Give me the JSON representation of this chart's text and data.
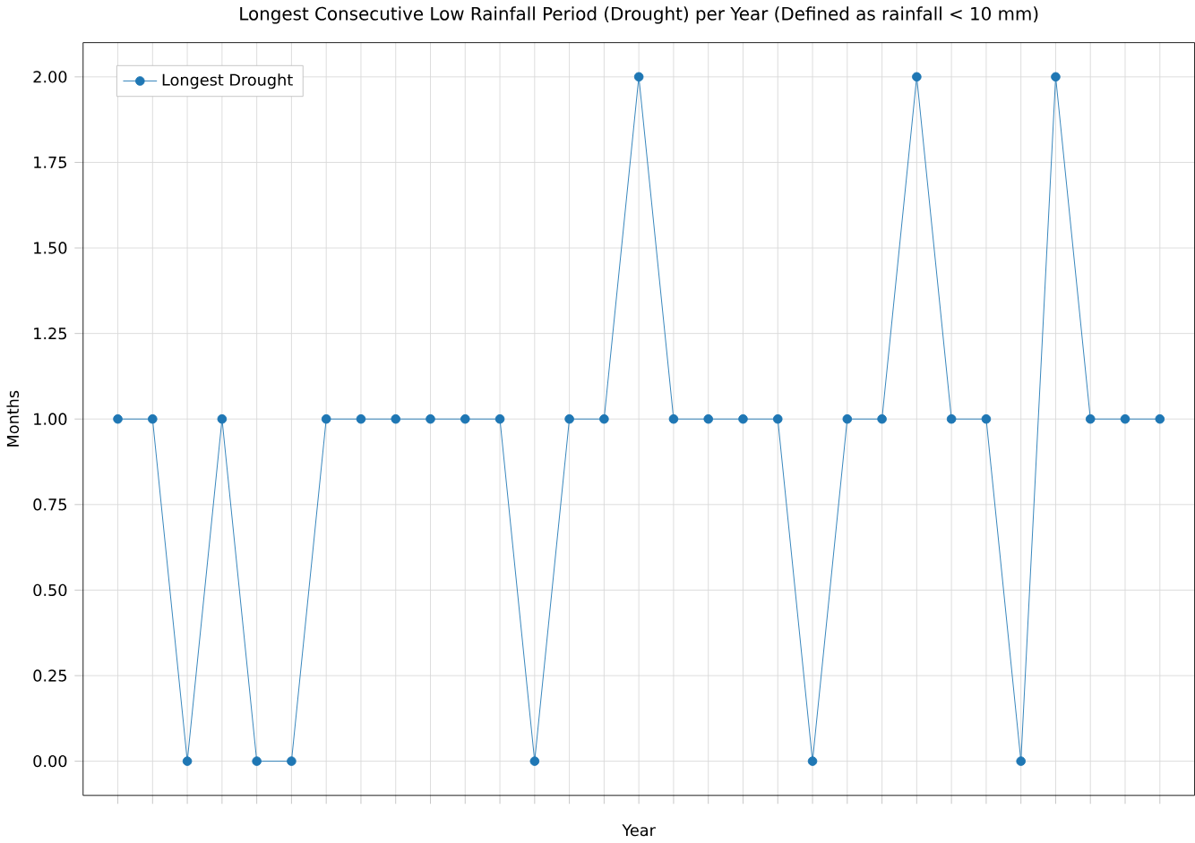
{
  "chart_data": {
    "type": "line",
    "title": "Longest Consecutive Low Rainfall Period (Drought) per Year (Defined as rainfall < 10 mm)",
    "xlabel": "Year",
    "ylabel": "Months",
    "categories": [
      null,
      null,
      null,
      null,
      null,
      null,
      null,
      null,
      null,
      null,
      null,
      null,
      null,
      null,
      null,
      null,
      null,
      null,
      null,
      null,
      null,
      null,
      null,
      null,
      null,
      null,
      null,
      null,
      null,
      null,
      null
    ],
    "series": [
      {
        "name": "Longest Drought",
        "color": "#1f77b4",
        "values": [
          1,
          1,
          0,
          1,
          0,
          0,
          1,
          1,
          1,
          1,
          1,
          1,
          0,
          1,
          1,
          2,
          1,
          1,
          1,
          1,
          0,
          1,
          1,
          2,
          1,
          1,
          0,
          2,
          1,
          1,
          1
        ]
      }
    ],
    "ylim": [
      -0.1,
      2.1
    ],
    "yticks": [
      {
        "value": 0,
        "label": "0.00"
      },
      {
        "value": 0.25,
        "label": "0.25"
      },
      {
        "value": 0.5,
        "label": "0.50"
      },
      {
        "value": 0.75,
        "label": "0.75"
      },
      {
        "value": 1,
        "label": "1.00"
      },
      {
        "value": 1.25,
        "label": "1.25"
      },
      {
        "value": 1.5,
        "label": "1.50"
      },
      {
        "value": 1.75,
        "label": "1.75"
      },
      {
        "value": 2,
        "label": "2.00"
      }
    ],
    "grid": true,
    "legend": "top left",
    "marker": "circle",
    "line_style": "solid",
    "tick_labels": "y"
  }
}
